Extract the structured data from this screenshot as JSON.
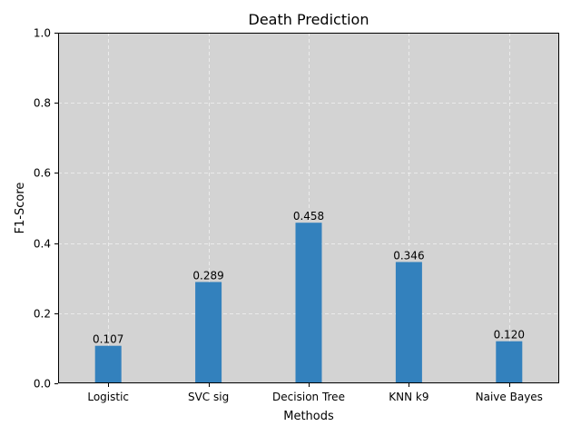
{
  "chart_data": {
    "type": "bar",
    "title": "Death Prediction",
    "xlabel": "Methods",
    "ylabel": "F1-Score",
    "categories": [
      "Logistic",
      "SVC sig",
      "Decision Tree",
      "KNN k9",
      "Naive Bayes"
    ],
    "values": [
      0.107,
      0.289,
      0.458,
      0.346,
      0.12
    ],
    "value_labels": [
      "0.107",
      "0.289",
      "0.458",
      "0.346",
      "0.120"
    ],
    "ylim": [
      0,
      1.0
    ],
    "yticks": [
      "0.0",
      "0.2",
      "0.4",
      "0.6",
      "0.8",
      "1.0"
    ],
    "grid": true,
    "colors": {
      "bar": "#3381bd",
      "plot_background": "#d3d3d3"
    }
  }
}
